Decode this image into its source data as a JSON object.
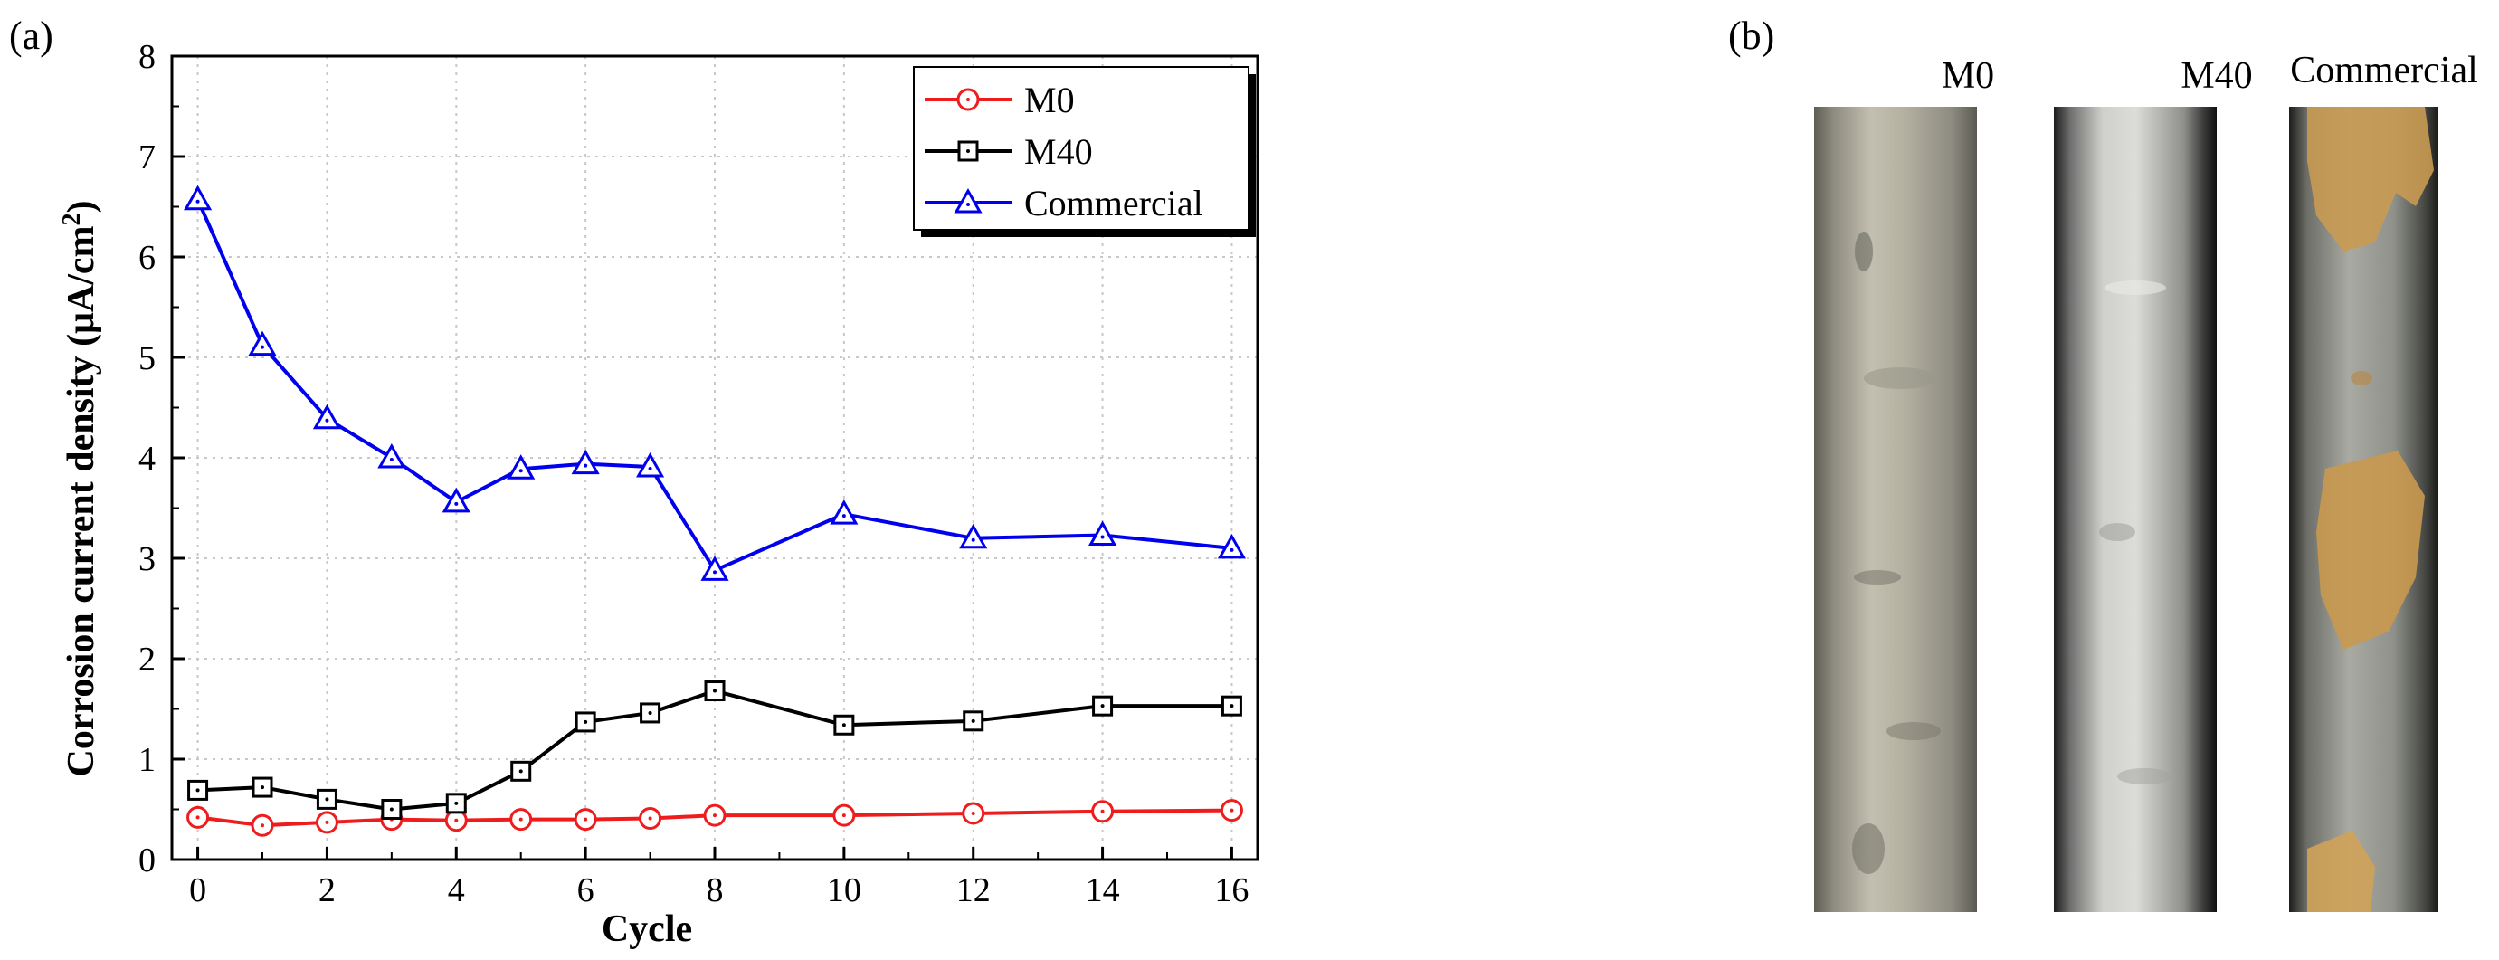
{
  "panel_a": {
    "label": "(a)"
  },
  "panel_b": {
    "label": "(b)",
    "samples": [
      {
        "name": "M0",
        "tone": "#b9b6a6"
      },
      {
        "name": "M40",
        "tone": "#c8c8c4"
      },
      {
        "name": "Commercial",
        "tone": "#a8a9a0",
        "rust": "#c79a55"
      }
    ]
  },
  "chart_data": {
    "type": "line",
    "title": "",
    "xlabel": "Cycle",
    "ylabel": "Corrosion current density (μA/cm²)",
    "xlim": [
      -0.4,
      16.4
    ],
    "ylim": [
      0,
      8
    ],
    "xticks": [
      0,
      2,
      4,
      6,
      8,
      10,
      12,
      14,
      16
    ],
    "yticks": [
      0,
      1,
      2,
      3,
      4,
      5,
      6,
      7,
      8
    ],
    "grid": true,
    "legend_position": "top-right",
    "x": [
      0,
      1,
      2,
      3,
      4,
      5,
      6,
      7,
      8,
      10,
      12,
      14,
      16
    ],
    "series": [
      {
        "name": "M0",
        "color": "#ee1c1c",
        "marker": "circle",
        "values": [
          0.42,
          0.34,
          0.37,
          0.4,
          0.39,
          0.4,
          0.4,
          0.41,
          0.44,
          0.44,
          0.46,
          0.48,
          0.49
        ]
      },
      {
        "name": "M40",
        "color": "#000000",
        "marker": "square",
        "values": [
          0.69,
          0.72,
          0.6,
          0.5,
          0.56,
          0.88,
          1.37,
          1.46,
          1.68,
          1.34,
          1.38,
          1.53,
          1.53
        ]
      },
      {
        "name": "Commercial",
        "color": "#0000ee",
        "marker": "triangle",
        "values": [
          6.57,
          5.12,
          4.39,
          4.0,
          3.56,
          3.89,
          3.94,
          3.91,
          2.88,
          3.44,
          3.2,
          3.23,
          3.1
        ]
      }
    ]
  }
}
